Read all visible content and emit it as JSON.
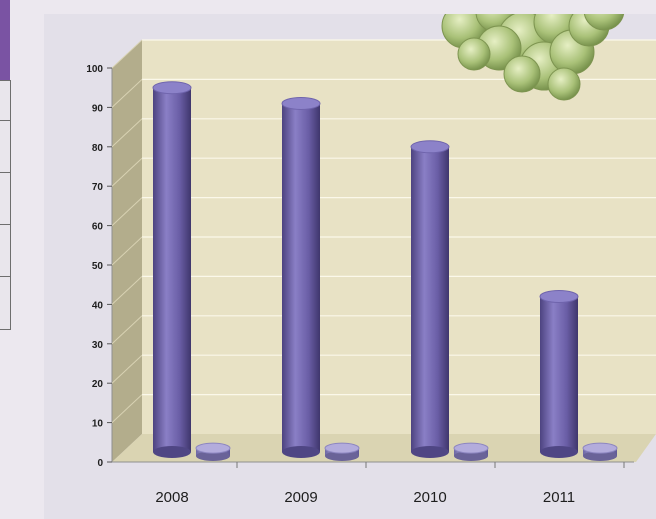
{
  "chart_data": {
    "type": "bar",
    "style": "3d-cylinder",
    "categories": [
      "2008",
      "2009",
      "2010",
      "2011"
    ],
    "series": [
      {
        "values": [
          95,
          91,
          80,
          42
        ],
        "color": "#6f62aa"
      },
      {
        "values": [
          2,
          2,
          2,
          2
        ],
        "color": "#8f88c4"
      }
    ],
    "yticks": [
      0,
      10,
      20,
      30,
      40,
      50,
      60,
      70,
      80,
      90,
      100
    ],
    "ylim": [
      0,
      100
    ],
    "grid": true,
    "wall_color": "#e8e2c5",
    "floor_color": "#dad4b2",
    "side_wall_color": "#b3ad8c",
    "title": "",
    "xlabel": "",
    "ylabel": ""
  },
  "decoration": {
    "photo": "green-grapes"
  }
}
